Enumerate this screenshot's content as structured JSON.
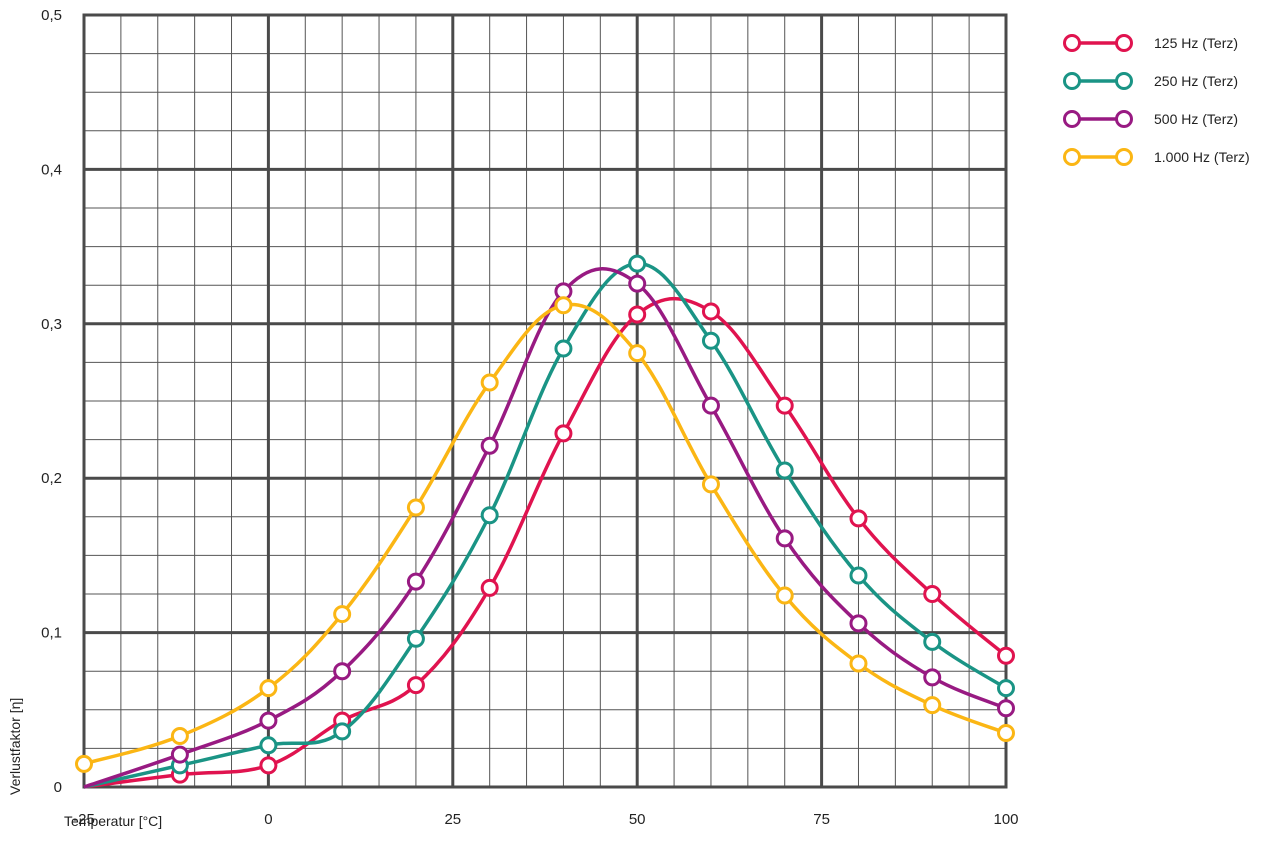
{
  "chart_data": {
    "type": "line",
    "xlabel": "Temperatur [°C]",
    "ylabel": "Verlustfaktor [η]",
    "xlim": [
      -25,
      100
    ],
    "ylim": [
      0,
      0.5
    ],
    "x_ticks": [
      -25,
      0,
      25,
      50,
      75,
      100
    ],
    "x_tick_labels": [
      "-25",
      "0",
      "25",
      "50",
      "75",
      "100"
    ],
    "y_ticks": [
      0,
      0.1,
      0.2,
      0.3,
      0.4,
      0.5
    ],
    "y_tick_labels": [
      "0",
      "0,1",
      "0,2",
      "0,3",
      "0,4",
      "0,5"
    ],
    "grid": true,
    "legend_position": "top-right",
    "series": [
      {
        "name": "125 Hz (Terz)",
        "color": "#e0134f",
        "points": [
          [
            -25,
            0.0
          ],
          [
            -12,
            0.008
          ],
          [
            0,
            0.014
          ],
          [
            10,
            0.043
          ],
          [
            20,
            0.066
          ],
          [
            30,
            0.129
          ],
          [
            40,
            0.229
          ],
          [
            50,
            0.306
          ],
          [
            60,
            0.308
          ],
          [
            70,
            0.247
          ],
          [
            80,
            0.174
          ],
          [
            90,
            0.125
          ],
          [
            100,
            0.085
          ]
        ]
      },
      {
        "name": "250 Hz (Terz)",
        "color": "#1a9485",
        "points": [
          [
            -25,
            0.0
          ],
          [
            -12,
            0.014
          ],
          [
            0,
            0.027
          ],
          [
            10,
            0.036
          ],
          [
            20,
            0.096
          ],
          [
            30,
            0.176
          ],
          [
            40,
            0.284
          ],
          [
            50,
            0.339
          ],
          [
            60,
            0.289
          ],
          [
            70,
            0.205
          ],
          [
            80,
            0.137
          ],
          [
            90,
            0.094
          ],
          [
            100,
            0.064
          ]
        ]
      },
      {
        "name": "500 Hz (Terz)",
        "color": "#981a82",
        "points": [
          [
            -25,
            0.0
          ],
          [
            -12,
            0.021
          ],
          [
            0,
            0.043
          ],
          [
            10,
            0.075
          ],
          [
            20,
            0.133
          ],
          [
            30,
            0.221
          ],
          [
            40,
            0.321
          ],
          [
            50,
            0.326
          ],
          [
            60,
            0.247
          ],
          [
            70,
            0.161
          ],
          [
            80,
            0.106
          ],
          [
            90,
            0.071
          ],
          [
            100,
            0.051
          ]
        ]
      },
      {
        "name": "1.000 Hz (Terz)",
        "color": "#fbb614",
        "points": [
          [
            -25,
            0.015
          ],
          [
            -12,
            0.033
          ],
          [
            0,
            0.064
          ],
          [
            10,
            0.112
          ],
          [
            20,
            0.181
          ],
          [
            30,
            0.262
          ],
          [
            40,
            0.312
          ],
          [
            50,
            0.281
          ],
          [
            60,
            0.196
          ],
          [
            70,
            0.124
          ],
          [
            80,
            0.08
          ],
          [
            90,
            0.053
          ],
          [
            100,
            0.035
          ]
        ]
      }
    ]
  }
}
